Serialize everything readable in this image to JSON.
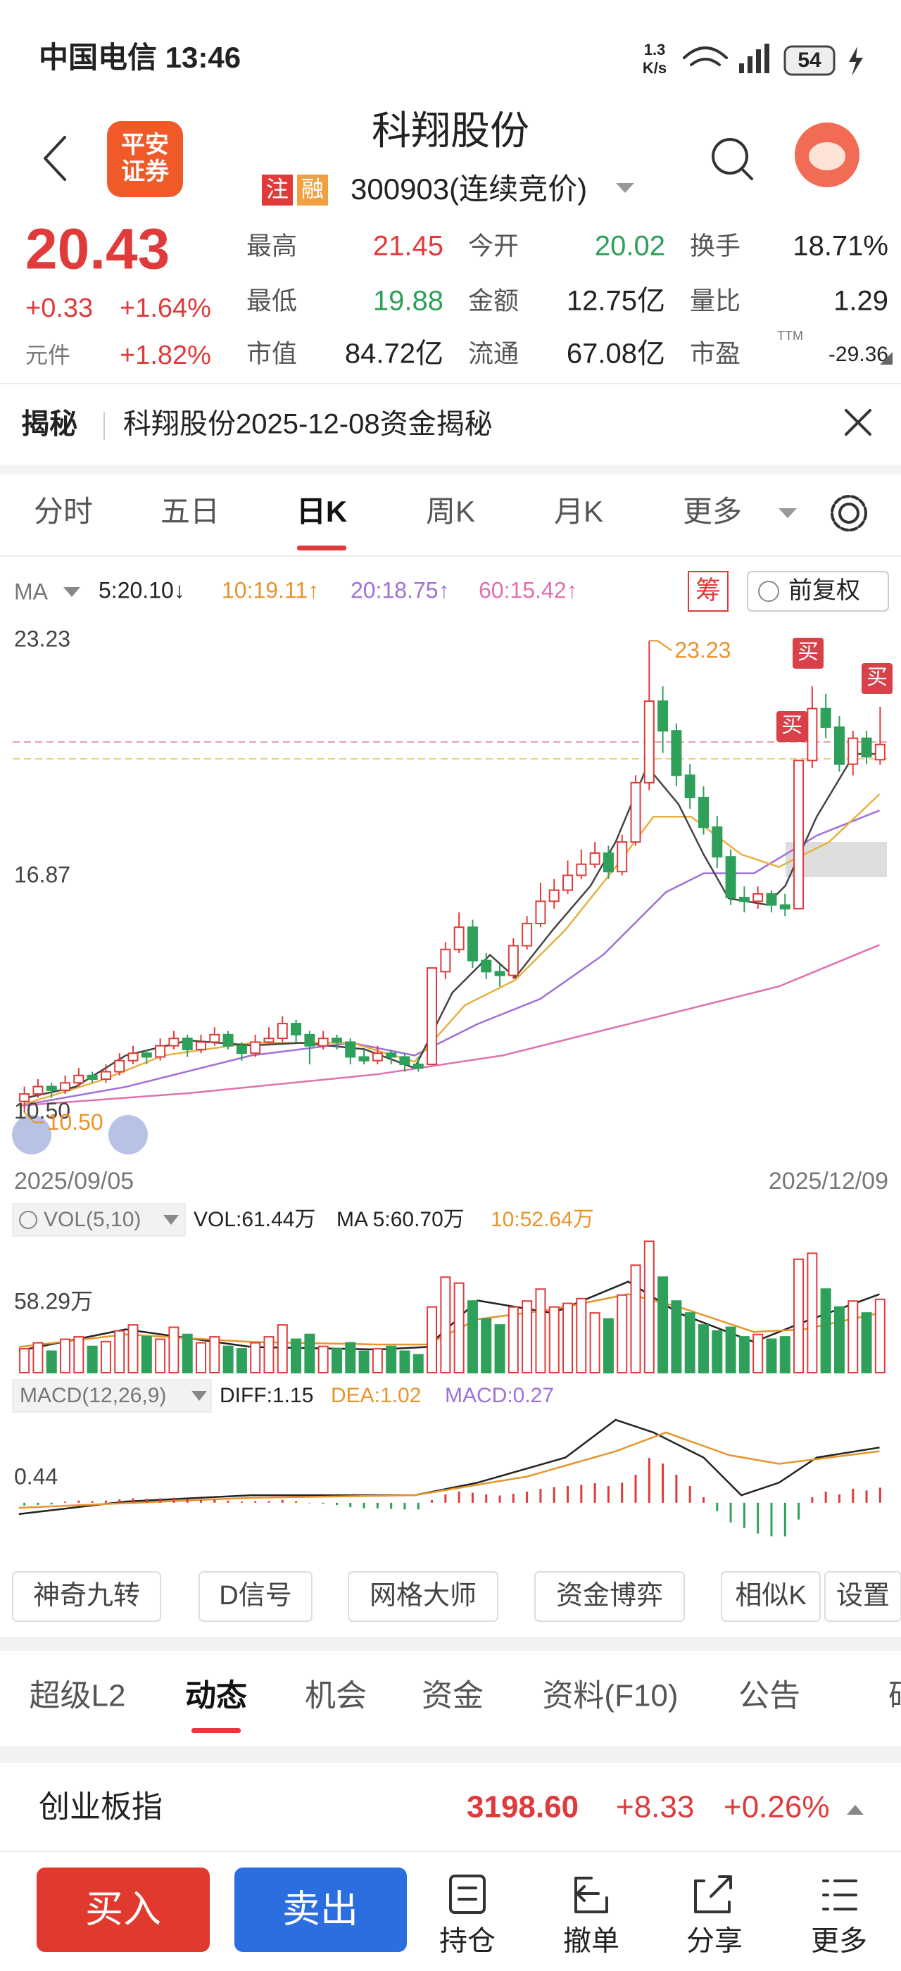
{
  "status_bar": {
    "carrier_time": "中国电信 13:46",
    "speed": "1.3",
    "speed_unit": "K/s",
    "battery": "54"
  },
  "header": {
    "logo": [
      "平安",
      "证券"
    ],
    "title": "科翔股份",
    "badges": [
      "注",
      "融"
    ],
    "code": "300903(连续竞价)"
  },
  "quote": {
    "price": "20.43",
    "change": "+0.33",
    "change_pct": "+1.64%",
    "sector": "元件",
    "sector_pct": "+1.82%",
    "stats": [
      [
        "最高",
        "21.45"
      ],
      [
        "今开",
        "20.02"
      ],
      [
        "换手",
        "18.71%"
      ],
      [
        "最低",
        "19.88"
      ],
      [
        "金额",
        "12.75亿"
      ],
      [
        "量比",
        "1.29"
      ],
      [
        "市值",
        "84.72亿"
      ],
      [
        "流通",
        "67.08亿"
      ],
      [
        "市盈",
        "-29.36"
      ]
    ],
    "ttm": "TTM"
  },
  "notice": {
    "tag": "揭秘",
    "text": "科翔股份2025-12-08资金揭秘"
  },
  "tabs": {
    "items": [
      "分时",
      "五日",
      "日K",
      "周K",
      "月K",
      "更多"
    ],
    "active": 2
  },
  "kline": {
    "ma_label": "MA",
    "ma": [
      "5:20.10↓",
      "10:19.11↑",
      "20:18.75↑",
      "60:15.42↑"
    ],
    "chip": "筹",
    "adjust": "前复权",
    "ylim": [
      9.9,
      23.9
    ],
    "yticks": [
      23.23,
      16.87,
      {
        "value": 10.5,
        "label": "10.50"
      }
    ],
    "high_label": "23.23",
    "low_label": "10.50",
    "markers": [
      "买",
      "买",
      "买"
    ],
    "dates": [
      "2025/09/05",
      "2025/12/09"
    ],
    "candles": [
      [
        10.8,
        11.2,
        10.5,
        11.0
      ],
      [
        11.0,
        11.4,
        10.9,
        11.2
      ],
      [
        11.2,
        11.3,
        10.9,
        11.1
      ],
      [
        11.1,
        11.5,
        11.0,
        11.3
      ],
      [
        11.3,
        11.7,
        11.2,
        11.5
      ],
      [
        11.5,
        11.6,
        11.3,
        11.4
      ],
      [
        11.4,
        11.8,
        11.3,
        11.6
      ],
      [
        11.6,
        12.1,
        11.5,
        11.9
      ],
      [
        11.9,
        12.3,
        11.8,
        12.1
      ],
      [
        12.1,
        12.2,
        11.8,
        12.0
      ],
      [
        12.0,
        12.5,
        11.9,
        12.3
      ],
      [
        12.3,
        12.7,
        12.2,
        12.5
      ],
      [
        12.5,
        12.6,
        12.0,
        12.2
      ],
      [
        12.2,
        12.6,
        12.1,
        12.4
      ],
      [
        12.4,
        12.8,
        12.3,
        12.6
      ],
      [
        12.6,
        12.7,
        12.2,
        12.3
      ],
      [
        12.3,
        12.4,
        11.9,
        12.1
      ],
      [
        12.1,
        12.6,
        12.0,
        12.4
      ],
      [
        12.4,
        12.8,
        12.3,
        12.5
      ],
      [
        12.5,
        13.1,
        12.4,
        12.9
      ],
      [
        12.9,
        13.0,
        12.4,
        12.6
      ],
      [
        12.6,
        12.7,
        11.8,
        12.3
      ],
      [
        12.3,
        12.7,
        12.2,
        12.5
      ],
      [
        12.5,
        12.6,
        12.2,
        12.4
      ],
      [
        12.4,
        12.5,
        11.8,
        12.0
      ],
      [
        12.0,
        12.2,
        11.8,
        11.9
      ],
      [
        11.9,
        12.3,
        11.8,
        12.1
      ],
      [
        12.1,
        12.2,
        11.8,
        12.0
      ],
      [
        12.0,
        12.1,
        11.6,
        11.8
      ],
      [
        11.8,
        12.0,
        11.6,
        11.7
      ],
      [
        11.8,
        14.4,
        11.8,
        14.4
      ],
      [
        14.3,
        15.1,
        14.1,
        14.9
      ],
      [
        14.9,
        15.9,
        14.8,
        15.5
      ],
      [
        15.5,
        15.7,
        14.4,
        14.6
      ],
      [
        14.6,
        14.8,
        14.1,
        14.3
      ],
      [
        14.3,
        14.5,
        13.9,
        14.2
      ],
      [
        14.2,
        15.2,
        14.1,
        15.0
      ],
      [
        15.0,
        15.8,
        14.9,
        15.6
      ],
      [
        15.6,
        16.7,
        15.5,
        16.2
      ],
      [
        16.2,
        16.8,
        16.0,
        16.5
      ],
      [
        16.5,
        17.3,
        16.4,
        16.9
      ],
      [
        16.9,
        17.6,
        16.8,
        17.2
      ],
      [
        17.2,
        17.8,
        17.1,
        17.5
      ],
      [
        17.5,
        17.7,
        16.8,
        17.0
      ],
      [
        17.0,
        18.0,
        16.9,
        17.8
      ],
      [
        17.8,
        19.6,
        17.7,
        19.4
      ],
      [
        19.4,
        23.23,
        19.2,
        21.6
      ],
      [
        21.6,
        22.0,
        20.2,
        20.8
      ],
      [
        20.8,
        21.0,
        19.3,
        19.6
      ],
      [
        19.6,
        19.9,
        18.7,
        19.0
      ],
      [
        19.0,
        19.3,
        18.0,
        18.2
      ],
      [
        18.2,
        18.5,
        17.1,
        17.4
      ],
      [
        17.4,
        17.6,
        16.1,
        16.3
      ],
      [
        16.3,
        16.6,
        15.9,
        16.2
      ],
      [
        16.2,
        16.6,
        16.0,
        16.4
      ],
      [
        16.4,
        16.5,
        15.9,
        16.1
      ],
      [
        16.1,
        16.4,
        15.8,
        16.0
      ],
      [
        16.0,
        20.0,
        16.0,
        20.0
      ],
      [
        20.0,
        22.0,
        19.8,
        21.4
      ],
      [
        21.4,
        21.8,
        20.6,
        20.9
      ],
      [
        20.9,
        21.2,
        19.7,
        19.9
      ],
      [
        19.9,
        20.8,
        19.6,
        20.6
      ],
      [
        20.6,
        20.8,
        19.9,
        20.1
      ],
      [
        20.02,
        21.45,
        19.88,
        20.43
      ]
    ]
  },
  "volume": {
    "label": "VOL(5,10)",
    "stats": [
      "VOL:61.44万",
      "MA 5:60.70万",
      "10:52.64万"
    ],
    "ylim": [
      0,
      112
    ],
    "yticks": [
      {
        "value": 58.29,
        "label": "58.29万"
      }
    ],
    "values": [
      20,
      25,
      18,
      28,
      30,
      22,
      26,
      35,
      40,
      30,
      28,
      38,
      32,
      25,
      30,
      22,
      20,
      25,
      30,
      40,
      28,
      32,
      22,
      20,
      25,
      18,
      20,
      22,
      18,
      15,
      55,
      80,
      75,
      60,
      45,
      40,
      55,
      60,
      70,
      55,
      58,
      62,
      50,
      45,
      65,
      90,
      110,
      80,
      60,
      50,
      40,
      35,
      38,
      30,
      32,
      28,
      30,
      95,
      100,
      70,
      55,
      60,
      50,
      61.44
    ]
  },
  "macd": {
    "label": "MACD(12,26,9)",
    "stats": [
      "DIFF:1.15",
      "DEA:1.02",
      "MACD:0.27"
    ],
    "ylim": [
      -0.82,
      1.57
    ],
    "yticks": [
      0.44
    ],
    "values": [
      -0.05,
      -0.04,
      -0.03,
      0.02,
      0.04,
      0.03,
      0.04,
      0.06,
      0.08,
      0.07,
      0.08,
      0.09,
      0.06,
      0.05,
      0.06,
      0.04,
      0.02,
      0.03,
      0.03,
      0.05,
      0.03,
      -0.01,
      -0.02,
      -0.04,
      -0.08,
      -0.1,
      -0.1,
      -0.11,
      -0.12,
      -0.12,
      0.05,
      0.15,
      0.2,
      0.18,
      0.15,
      0.13,
      0.16,
      0.2,
      0.25,
      0.28,
      0.3,
      0.32,
      0.35,
      0.3,
      0.36,
      0.5,
      0.8,
      0.7,
      0.5,
      0.3,
      0.1,
      -0.15,
      -0.35,
      -0.45,
      -0.55,
      -0.6,
      -0.6,
      -0.3,
      0.1,
      0.2,
      0.15,
      0.25,
      0.22,
      0.27
    ]
  },
  "tools": [
    "神奇九转",
    "D信号",
    "网格大师",
    "资金博弈",
    "相似K",
    "设置"
  ],
  "sections": {
    "items": [
      "超级L2",
      "动态",
      "机会",
      "资金",
      "资料(F10)",
      "公告",
      "研报"
    ],
    "active": 1
  },
  "index": {
    "name": "创业板指",
    "value": "3198.60",
    "change": "+8.33",
    "pct": "+0.26%"
  },
  "actions": {
    "buy": "买入",
    "sell": "卖出",
    "items": [
      "持仓",
      "撤单",
      "分享",
      "更多"
    ]
  }
}
